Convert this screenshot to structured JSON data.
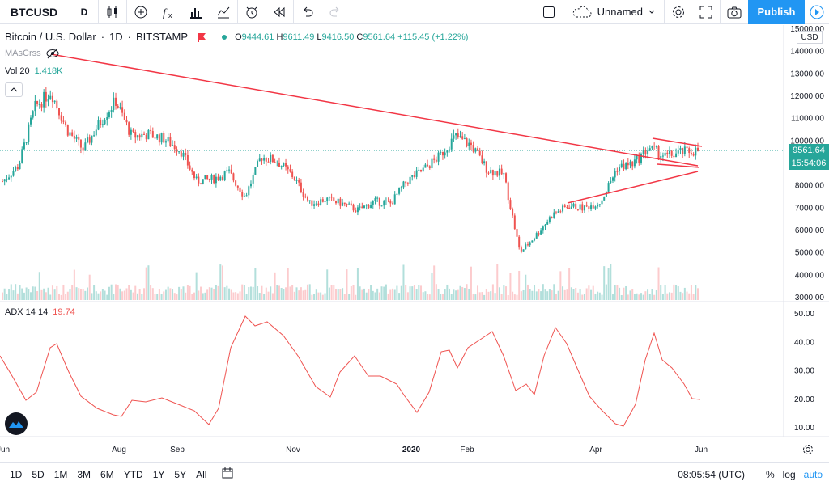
{
  "toolbar": {
    "symbol": "BTCUSD",
    "interval": "D",
    "layout_name": "Unnamed",
    "publish_label": "Publish",
    "icons": [
      "candles-icon",
      "add-indicator-icon",
      "fx-icon",
      "bars-compare-icon",
      "chart-style-icon",
      "alert-icon",
      "replay-icon",
      "undo-icon",
      "redo-icon",
      "fullscreen-square-icon",
      "cloud-icon",
      "settings-icon",
      "fullscreen-icon",
      "camera-icon",
      "play-icon"
    ]
  },
  "legend": {
    "title": "Bitcoin / U.S. Dollar",
    "interval": "1D",
    "exchange": "BITSTAMP",
    "open_label": "O",
    "open": "9444.61",
    "high_label": "H",
    "high": "9611.49",
    "low_label": "L",
    "low": "9416.50",
    "close_label": "C",
    "close": "9561.64",
    "change": "+115.45 (+1.22%)",
    "ma_name": "MAsCrss",
    "vol_name": "Vol 20",
    "vol_value": "1.418K",
    "adx_name": "ADX 14 14",
    "adx_value": "19.74"
  },
  "price_axis": {
    "currency": "USD",
    "ticks": [
      "15000.00",
      "14000.00",
      "13000.00",
      "12000.00",
      "11000.00",
      "10000.00",
      "9000.00",
      "8000.00",
      "7000.00",
      "6000.00",
      "5000.00",
      "4000.00",
      "3000.00"
    ],
    "last_price": "9561.64",
    "countdown": "15:54:06"
  },
  "adx_axis": {
    "ticks": [
      "50.00",
      "40.00",
      "30.00",
      "20.00",
      "10.00"
    ]
  },
  "time_axis": {
    "labels": [
      "Jun",
      "Aug",
      "Sep",
      "Nov",
      "2020",
      "Feb",
      "Apr",
      "Jun"
    ]
  },
  "bottom": {
    "ranges": [
      "1D",
      "5D",
      "1M",
      "3M",
      "6M",
      "YTD",
      "1Y",
      "5Y",
      "All"
    ],
    "time": "08:05:54 (UTC)",
    "percent": "%",
    "log": "log",
    "auto": "auto"
  },
  "colors": {
    "up": "#26a69a",
    "down": "#ef5350",
    "accent": "#2196f3",
    "trend": "#f23645",
    "adx": "#ef5350"
  },
  "chart_data": {
    "type": "candlestick",
    "title": "Bitcoin / U.S. Dollar",
    "ylim": [
      3000,
      15000
    ],
    "approx_close": [
      [
        "Jun",
        8200
      ],
      [
        "Jun",
        8900
      ],
      [
        "Jul",
        11500
      ],
      [
        "Jul",
        12200
      ],
      [
        "Jul",
        10500
      ],
      [
        "Jul",
        9600
      ],
      [
        "Aug",
        10800
      ],
      [
        "Aug",
        11800
      ],
      [
        "Aug",
        10200
      ],
      [
        "Sep",
        10300
      ],
      [
        "Sep",
        10100
      ],
      [
        "Sep",
        9600
      ],
      [
        "Sep",
        8200
      ],
      [
        "Oct",
        8300
      ],
      [
        "Oct",
        8600
      ],
      [
        "Oct",
        7500
      ],
      [
        "Oct",
        9300
      ],
      [
        "Nov",
        9100
      ],
      [
        "Nov",
        8400
      ],
      [
        "Nov",
        7200
      ],
      [
        "Dec",
        7400
      ],
      [
        "Dec",
        7200
      ],
      [
        "Dec",
        6900
      ],
      [
        "Dec",
        7300
      ],
      [
        "Jan",
        7200
      ],
      [
        "Jan",
        8200
      ],
      [
        "Jan",
        8700
      ],
      [
        "Feb",
        9300
      ],
      [
        "Feb",
        10200
      ],
      [
        "Feb",
        9800
      ],
      [
        "Feb",
        8700
      ],
      [
        "Mar",
        8500
      ],
      [
        "Mar",
        5000
      ],
      [
        "Mar",
        5800
      ],
      [
        "Mar",
        6700
      ],
      [
        "Apr",
        7100
      ],
      [
        "Apr",
        7000
      ],
      [
        "Apr",
        7300
      ],
      [
        "Apr",
        8800
      ],
      [
        "May",
        9000
      ],
      [
        "May",
        9700
      ],
      [
        "May",
        9300
      ],
      [
        "May",
        9500
      ],
      [
        "Jun",
        9561.64
      ]
    ],
    "adx": {
      "name": "ADX 14 14",
      "last": 19.74,
      "ylim": [
        5,
        55
      ]
    }
  }
}
